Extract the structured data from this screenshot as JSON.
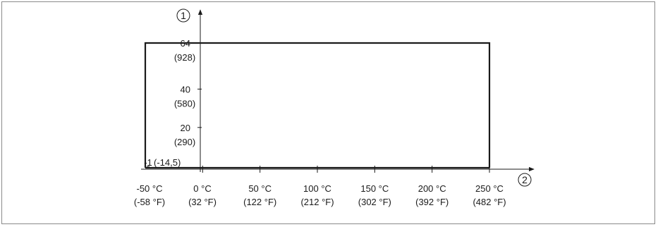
{
  "chart_data": {
    "type": "area",
    "title": "",
    "y_axis_marker": "1",
    "x_axis_marker": "2",
    "y_ticks": [
      {
        "value": 64,
        "label": "64",
        "sublabel": "(928)"
      },
      {
        "value": 40,
        "label": "40",
        "sublabel": "(580)"
      },
      {
        "value": 20,
        "label": "20",
        "sublabel": "(290)"
      },
      {
        "value": -1,
        "label": "-1",
        "sublabel": "(-14,5)"
      }
    ],
    "x_ticks": [
      {
        "value": -50,
        "label": "-50 °C",
        "sublabel": "(-58 °F)"
      },
      {
        "value": 0,
        "label": "0 °C",
        "sublabel": "(32 °F)"
      },
      {
        "value": 50,
        "label": "50 °C",
        "sublabel": "(122 °F)"
      },
      {
        "value": 100,
        "label": "100 °C",
        "sublabel": "(212 °F)"
      },
      {
        "value": 150,
        "label": "150 °C",
        "sublabel": "(302 °F)"
      },
      {
        "value": 200,
        "label": "200 °C",
        "sublabel": "(392 °F)"
      },
      {
        "value": 250,
        "label": "250 °C",
        "sublabel": "(482 °F)"
      }
    ],
    "envelope": {
      "x": [
        -50,
        -50,
        250,
        250
      ],
      "y": [
        -1,
        64,
        64,
        -1
      ]
    },
    "xlim": [
      -50,
      250
    ],
    "ylim": [
      -1,
      64
    ],
    "grid": false,
    "legend": "none"
  }
}
